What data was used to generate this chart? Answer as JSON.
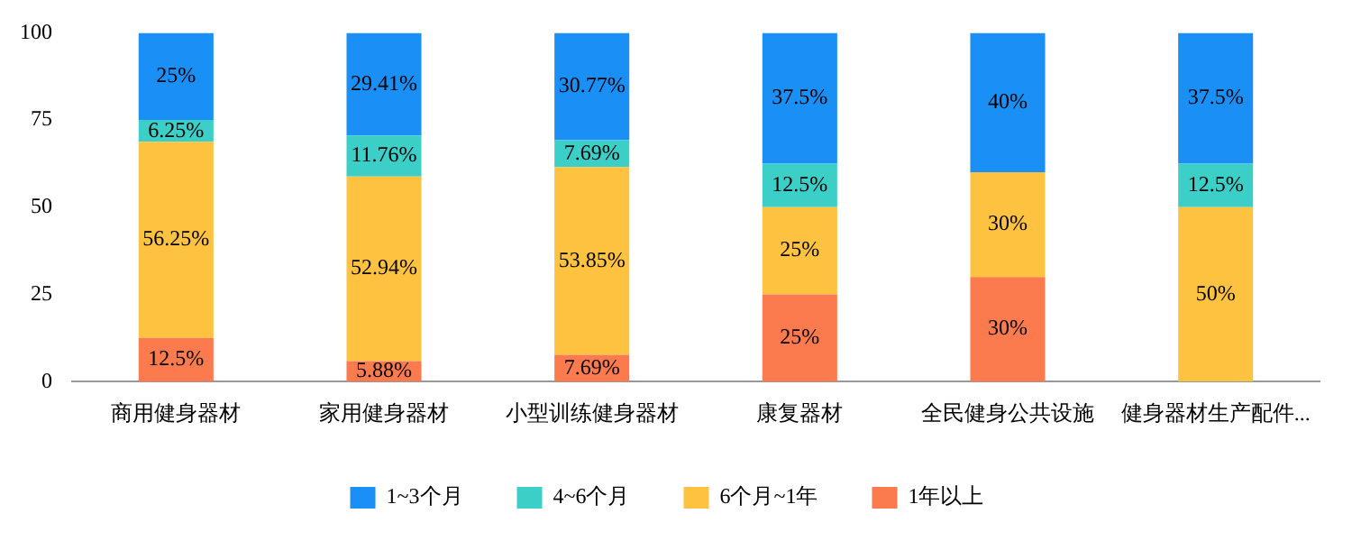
{
  "chart_data": {
    "type": "bar",
    "stacked": true,
    "categories": [
      "商用健身器材",
      "家用健身器材",
      "小型训练健身器材",
      "康复器材",
      "全民健身公共设施",
      "健身器材生产配件..."
    ],
    "series": [
      {
        "name": "1年以上",
        "color": "#fb7a4e",
        "values": [
          12.5,
          5.88,
          7.69,
          25,
          30,
          null
        ],
        "value_labels": [
          "12.5%",
          "5.88%",
          "7.69%",
          "25%",
          "30%",
          null
        ]
      },
      {
        "name": "6个月~1年",
        "color": "#fdc340",
        "values": [
          56.25,
          52.94,
          53.85,
          25,
          30,
          50
        ],
        "value_labels": [
          "56.25%",
          "52.94%",
          "53.85%",
          "25%",
          "30%",
          "50%"
        ]
      },
      {
        "name": "4~6个月",
        "color": "#3ccfc8",
        "values": [
          6.25,
          11.76,
          7.69,
          12.5,
          null,
          12.5
        ],
        "value_labels": [
          "6.25%",
          "11.76%",
          "7.69%",
          "12.5%",
          null,
          "12.5%"
        ]
      },
      {
        "name": "1~3个月",
        "color": "#1a8ff5",
        "values": [
          25,
          29.41,
          30.77,
          37.5,
          40,
          37.5
        ],
        "value_labels": [
          "25%",
          "29.41%",
          "30.77%",
          "37.5%",
          "40%",
          "37.5%"
        ]
      }
    ],
    "ylim": [
      0,
      100
    ],
    "yticks": [
      0,
      25,
      50,
      75,
      100
    ],
    "grid": false,
    "legend": "bottom"
  }
}
